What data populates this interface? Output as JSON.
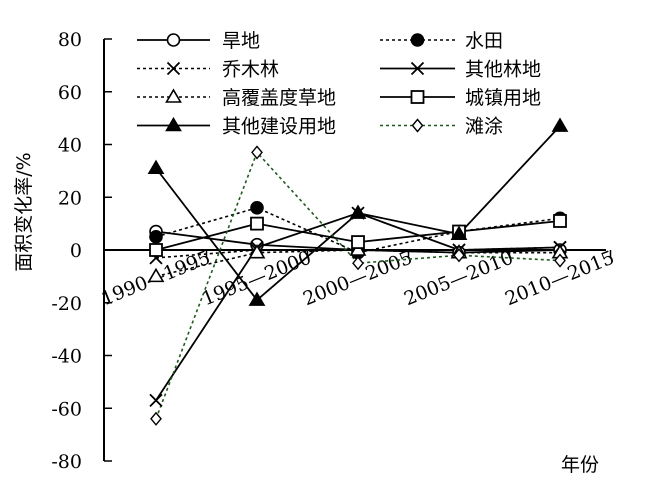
{
  "chart_data": {
    "type": "line",
    "title": "",
    "xlabel": "年份",
    "ylabel": "面积变化率/%",
    "ylim": [
      -80,
      80
    ],
    "yticks": [
      80,
      60,
      40,
      20,
      0,
      -20,
      -40,
      -60,
      -80
    ],
    "categories": [
      "1990—1995",
      "1995—2000",
      "2000—2005",
      "2005—2010",
      "2010—2015"
    ],
    "grid": false,
    "legend_position": "top",
    "series": [
      {
        "name": "旱地",
        "values": [
          7,
          2,
          0,
          -1,
          0
        ],
        "line": "solid",
        "marker": "circle-open",
        "color": "#000000"
      },
      {
        "name": "水田",
        "values": [
          5,
          16,
          -1,
          7,
          12
        ],
        "line": "dotted",
        "marker": "circle-filled",
        "color": "#000000"
      },
      {
        "name": "乔木林",
        "values": [
          -3,
          0,
          0,
          0,
          1
        ],
        "line": "dotted",
        "marker": "x",
        "color": "#000000"
      },
      {
        "name": "其他林地",
        "values": [
          -57,
          1,
          14,
          0,
          1
        ],
        "line": "solid",
        "marker": "x",
        "color": "#000000"
      },
      {
        "name": "高覆盖度草地",
        "values": [
          -10,
          -1,
          0,
          -1,
          -1
        ],
        "line": "dotted",
        "marker": "triangle-open",
        "color": "#000000"
      },
      {
        "name": "城镇用地",
        "values": [
          0,
          10,
          3,
          7,
          11
        ],
        "line": "solid",
        "marker": "square-open",
        "color": "#000000"
      },
      {
        "name": "其他建设用地",
        "values": [
          31,
          -19,
          14,
          6,
          47
        ],
        "line": "solid",
        "marker": "triangle-filled",
        "color": "#000000"
      },
      {
        "name": "滩涂",
        "values": [
          -64,
          37,
          -5,
          -2,
          -4
        ],
        "line": "dotted",
        "marker": "diamond-open",
        "color": "#1e5a1e"
      }
    ]
  }
}
